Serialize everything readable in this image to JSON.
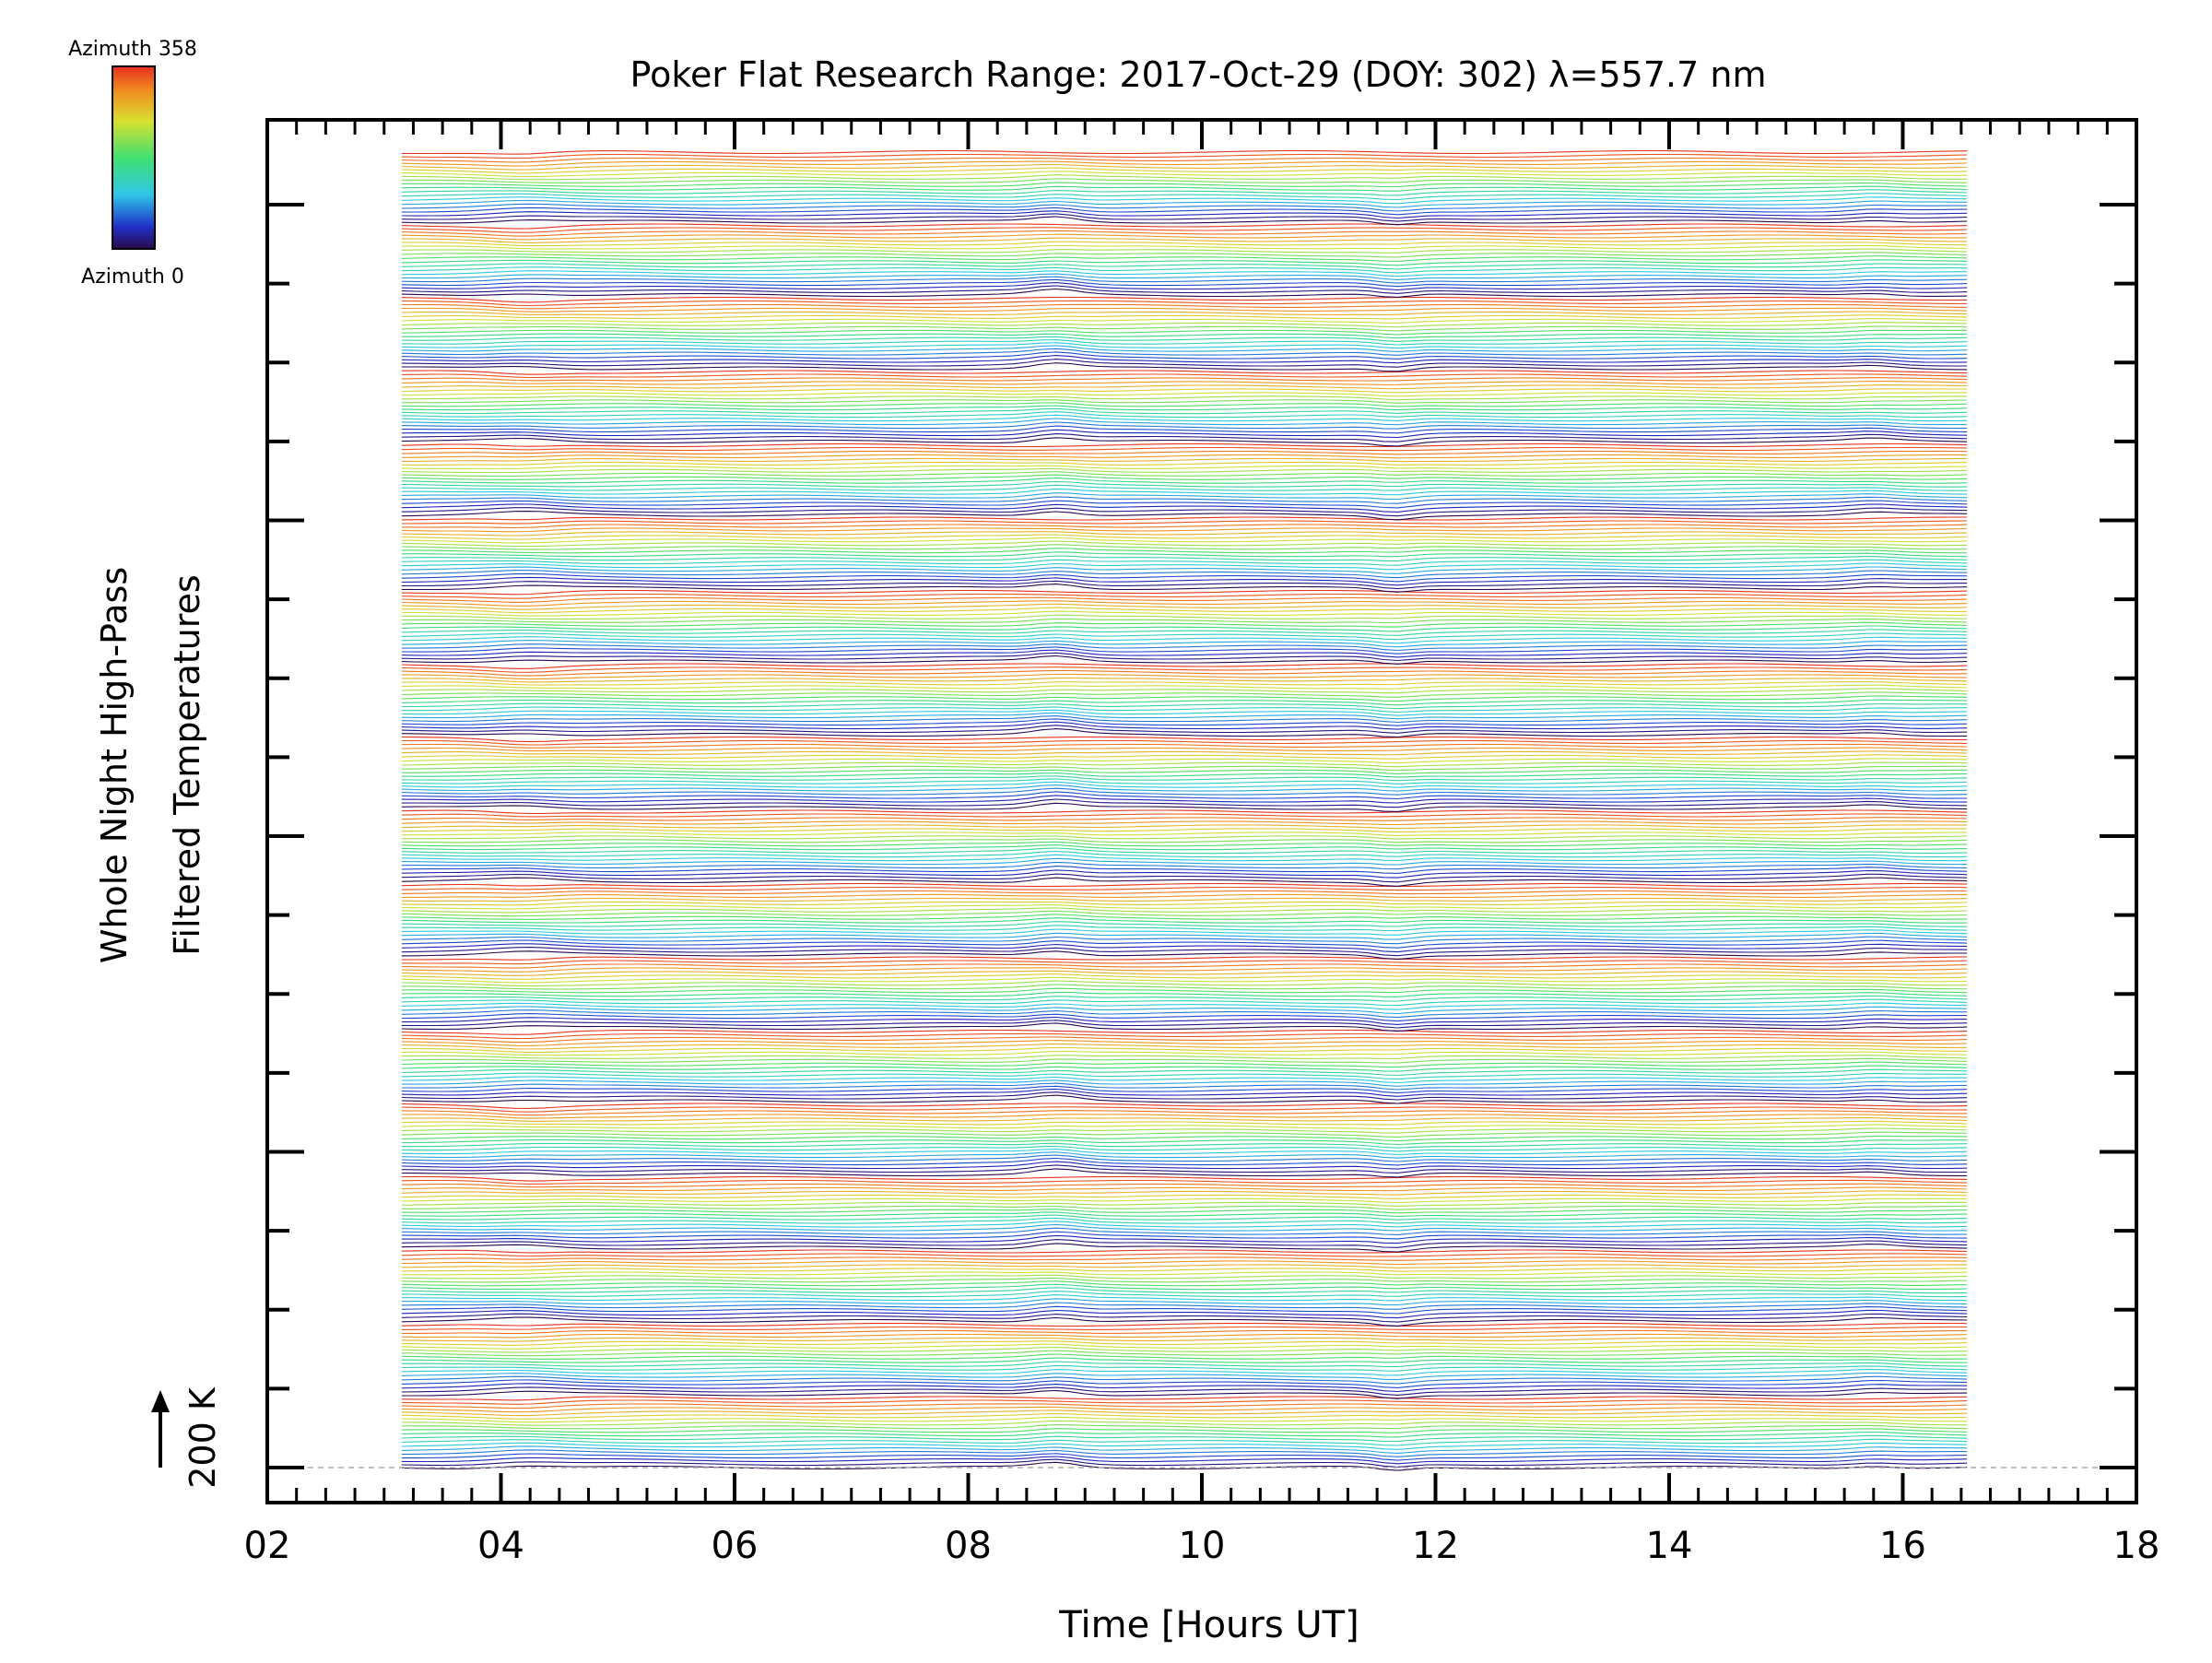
{
  "chart_data": {
    "type": "line",
    "title": "Poker Flat Research Range: 2017-Oct-29 (DOY: 302) λ=557.7 nm",
    "xlabel": "Time [Hours UT]",
    "ylabel_lines": [
      "Whole Night High-Pass",
      "Filtered Temperatures"
    ],
    "xlim": [
      2,
      18
    ],
    "x_ticks": [
      "02",
      "04",
      "06",
      "08",
      "10",
      "12",
      "14",
      "16",
      "18"
    ],
    "x_minor_step_hours": 0.25,
    "y_major_tick_count": 16,
    "data_start_hour": 3.15,
    "data_end_hour": 16.55,
    "series_count": 360,
    "series_color_cycle_period": 20,
    "trace_offset_scale_label": "200 K",
    "scale_arrow": "↑",
    "colorbar": {
      "top_label": "Azimuth 358",
      "bottom_label": "Azimuth 0",
      "range": [
        0,
        358
      ],
      "colormap": "rainbow"
    },
    "colors": {
      "axis": "#000000",
      "background": "#ffffff",
      "baseline_dashed": "#aaaaaa"
    }
  }
}
